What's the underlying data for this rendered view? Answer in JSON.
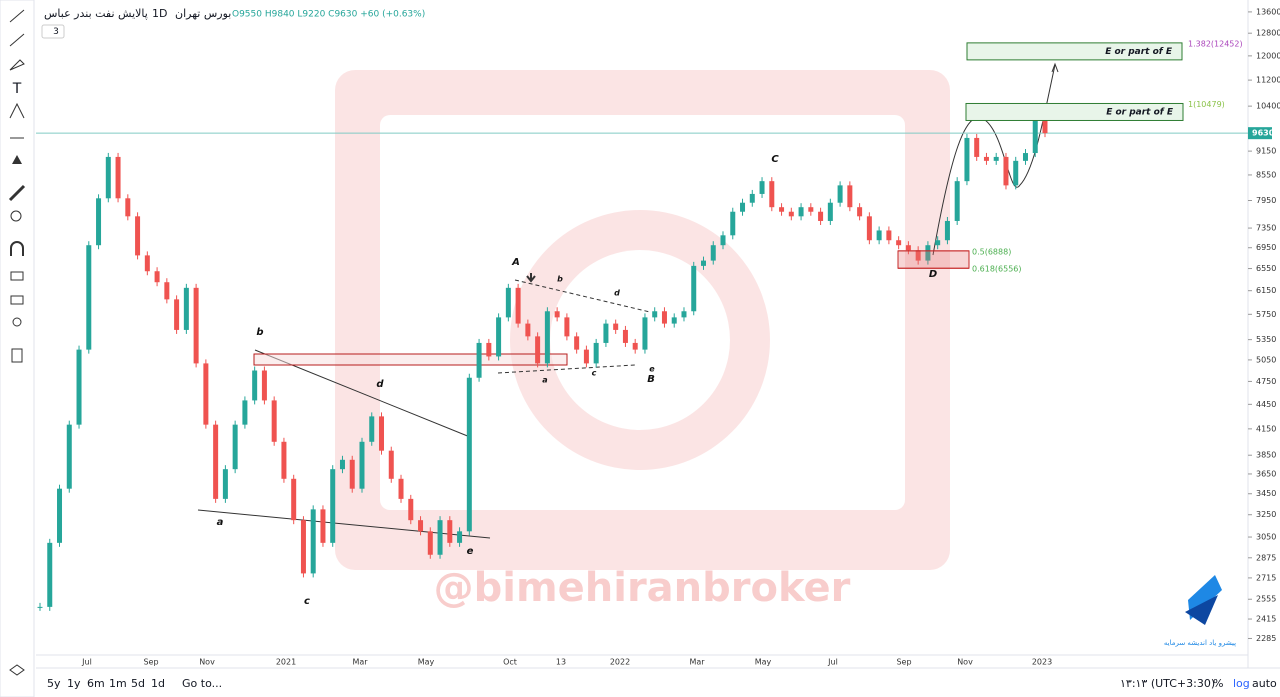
{
  "header": {
    "symbol": "پالایش نفت بندر عباس",
    "interval": "1D",
    "exchange": "بورس تهران",
    "ohlc": "O9550 H9840 L9220 C9630 +60 (+0.63%)",
    "indicator_count": "3"
  },
  "price_axis": {
    "log": true,
    "ylim": [
      2180,
      13870
    ],
    "yticks": [
      13600,
      12800,
      12000,
      11200,
      10400,
      9150,
      8550,
      7950,
      7350,
      6950,
      6550,
      6150,
      5750,
      5350,
      5050,
      4750,
      4450,
      4150,
      3850,
      3650,
      3450,
      3250,
      3050,
      2875,
      2715,
      2555,
      2415,
      2285
    ],
    "last_price": 9630
  },
  "time_axis": [
    "Jul",
    "Sep",
    "Nov",
    "2021",
    "Mar",
    "May",
    "Oct",
    "13",
    "2022",
    "Mar",
    "May",
    "Jul",
    "Sep",
    "Nov",
    "2023"
  ],
  "price_series": {
    "closes": [
      2500,
      3000,
      3500,
      4200,
      5200,
      7000,
      8000,
      9000,
      8000,
      7600,
      6800,
      6500,
      6300,
      6000,
      5500,
      6200,
      5000,
      4200,
      3400,
      3700,
      4200,
      4500,
      4900,
      4500,
      4000,
      3600,
      3200,
      2750,
      3300,
      3000,
      3700,
      3800,
      3500,
      4000,
      4300,
      3900,
      3600,
      3400,
      3200,
      3100,
      2900,
      3200,
      3000,
      3100,
      4800,
      5300,
      5100,
      5700,
      6200,
      5600,
      5400,
      5000,
      5800,
      5700,
      5400,
      5200,
      5000,
      5300,
      5600,
      5500,
      5300,
      5200,
      5700,
      5800,
      5600,
      5700,
      5800,
      6600,
      6700,
      7000,
      7200,
      7700,
      7900,
      8100,
      8400,
      7800,
      7700,
      7600,
      7800,
      7700,
      7500,
      7900,
      8300,
      7800,
      7600,
      7100,
      7300,
      7100,
      7000,
      6900,
      6700,
      7000,
      7100,
      7500,
      8400,
      9500,
      9000,
      8900,
      9000,
      8300,
      8900,
      9100,
      10200,
      9630
    ]
  },
  "fib_levels": [
    {
      "label": "1.382(12452)",
      "price": 12452,
      "box": "E or part of E"
    },
    {
      "label": "1(10479)",
      "price": 10479,
      "box": "E or part of E"
    },
    {
      "label": "0.5(6888)",
      "price": 6888
    },
    {
      "label": "0.618(6556)",
      "price": 6556
    }
  ],
  "wave_labels": [
    "a",
    "b",
    "c",
    "d",
    "e",
    "A",
    "b",
    "a",
    "c",
    "d",
    "e",
    "B",
    "C",
    "D"
  ],
  "watermark": "@bimehiranbroker",
  "logo_text": "پیشرو یاد اندیشه سرمایه",
  "bottom_bar": {
    "ranges": [
      "5y",
      "1y",
      "6m",
      "1m",
      "5d",
      "1d"
    ],
    "goto": "Go to...",
    "clock": "۱۳:۱۳ (UTC+3:30)",
    "percent": "%",
    "log": "log",
    "auto": "auto"
  }
}
